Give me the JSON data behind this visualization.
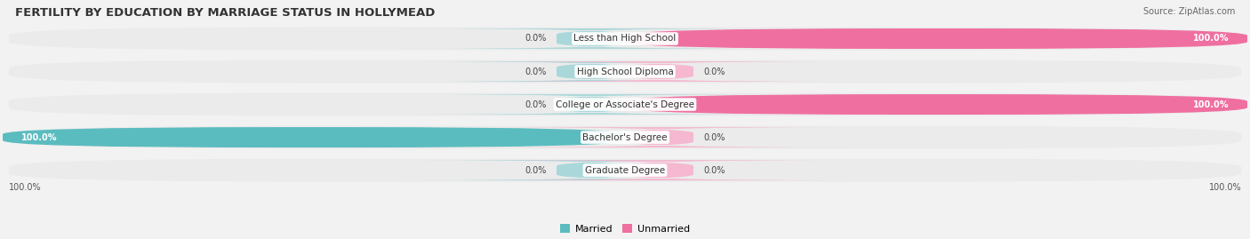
{
  "title": "FERTILITY BY EDUCATION BY MARRIAGE STATUS IN HOLLYMEAD",
  "source": "Source: ZipAtlas.com",
  "categories": [
    "Less than High School",
    "High School Diploma",
    "College or Associate's Degree",
    "Bachelor's Degree",
    "Graduate Degree"
  ],
  "married": [
    0.0,
    0.0,
    0.0,
    100.0,
    0.0
  ],
  "unmarried": [
    100.0,
    0.0,
    100.0,
    0.0,
    0.0
  ],
  "married_color": "#5bbcbf",
  "married_color_light": "#aad8da",
  "unmarried_color": "#ef6fa0",
  "unmarried_color_light": "#f5b8d0",
  "bg_color": "#f2f2f2",
  "bar_bg_color": "#e4e4e4",
  "row_bg_color": "#ebebeb",
  "title_fontsize": 9.5,
  "source_fontsize": 7,
  "label_fontsize": 7.5,
  "value_fontsize": 7,
  "legend_fontsize": 8,
  "figsize": [
    14.06,
    2.69
  ],
  "dpi": 100
}
